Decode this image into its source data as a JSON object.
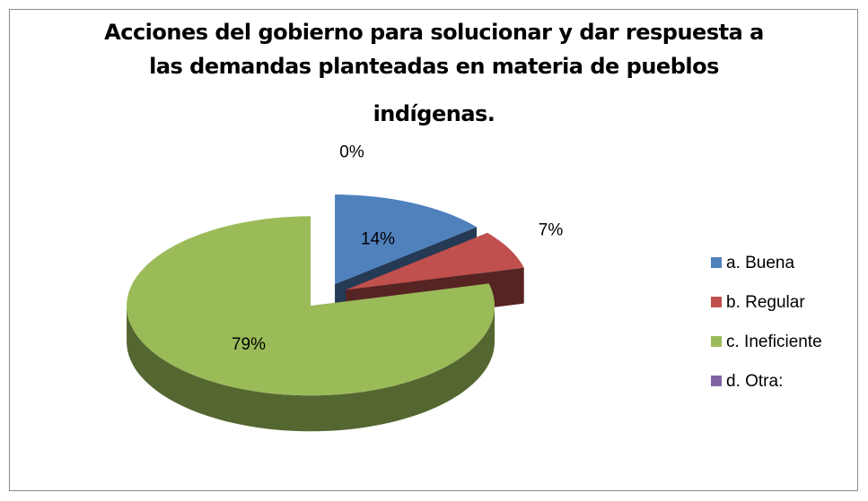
{
  "chart_data": {
    "type": "pie3d",
    "title": [
      "Acciones del gobierno para solucionar y dar respuesta a",
      "las demandas planteadas en materia de pueblos",
      "indígenas."
    ],
    "categories": [
      "a. Buena",
      "b. Regular",
      "c. Ineficiente",
      "d. Otra:"
    ],
    "values": [
      14,
      7,
      79,
      0
    ],
    "value_labels": [
      "14%",
      "7%",
      "79%",
      "0%"
    ],
    "colors": [
      "#4f81bd",
      "#c0504d",
      "#9bbb59",
      "#8064a2"
    ],
    "legend": "right"
  }
}
